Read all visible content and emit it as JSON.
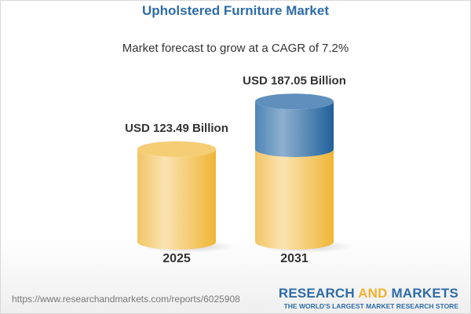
{
  "title": "Upholstered Furniture Market",
  "subtitle": "Market forecast to grow at a CAGR of 7.2%",
  "footer": {
    "url": "https://www.researchandmarkets.com/reports/6025908",
    "logo_part1": "RESEARCH ",
    "logo_part2": "AND",
    "logo_part3": " MARKETS",
    "tagline": "THE WORLD'S LARGEST MARKET RESEARCH STORE"
  },
  "colors": {
    "base": "#f2b940",
    "growth": "#2f6fa6",
    "title": "#2e6ca8"
  },
  "chart_data": {
    "type": "bar",
    "style": "3d-cylinder",
    "title": "Upholstered Furniture Market",
    "subtitle": "Market forecast to grow at a CAGR of 7.2%",
    "categories": [
      "2025",
      "2031"
    ],
    "values": [
      123.49,
      187.05
    ],
    "unit": "USD Billion",
    "data_labels": [
      "USD 123.49 Billion",
      "USD 187.05 Billion"
    ],
    "grid": false
  }
}
